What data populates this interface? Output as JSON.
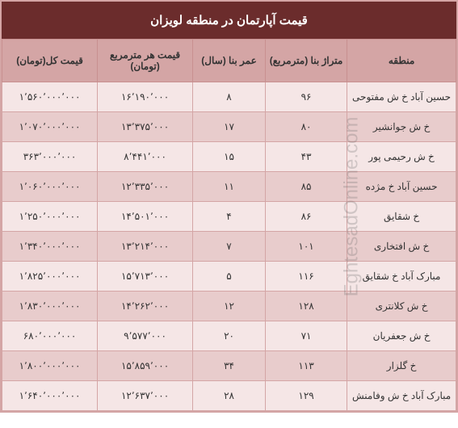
{
  "title": "قیمت آپارتمان در منطقه لویزان",
  "columns": {
    "region": "منطقه",
    "area": "متراژ بنا (مترمربع)",
    "age": "عمر بنا (سال)",
    "price_per_m": "قیمت هر مترمربع (تومان)",
    "total_price": "قیمت کل(تومان)"
  },
  "rows": [
    {
      "region": "حسین آباد خ ش مفتوحی",
      "area": "۹۶",
      "age": "۸",
      "ppm": "۱۶٬۱۹۰٬۰۰۰",
      "total": "۱٬۵۶۰٬۰۰۰٬۰۰۰"
    },
    {
      "region": "خ ش جوانشیر",
      "area": "۸۰",
      "age": "۱۷",
      "ppm": "۱۳٬۳۷۵٬۰۰۰",
      "total": "۱٬۰۷۰٬۰۰۰٬۰۰۰"
    },
    {
      "region": "خ ش رحیمی پور",
      "area": "۴۳",
      "age": "۱۵",
      "ppm": "۸٬۴۴۱٬۰۰۰",
      "total": "۳۶۳٬۰۰۰٬۰۰۰"
    },
    {
      "region": "حسین آباد خ مژده",
      "area": "۸۵",
      "age": "۱۱",
      "ppm": "۱۲٬۳۳۵٬۰۰۰",
      "total": "۱٬۰۶۰٬۰۰۰٬۰۰۰"
    },
    {
      "region": "خ شقایق",
      "area": "۸۶",
      "age": "۴",
      "ppm": "۱۴٬۵۰۱٬۰۰۰",
      "total": "۱٬۲۵۰٬۰۰۰٬۰۰۰"
    },
    {
      "region": "خ ش افتخاری",
      "area": "۱۰۱",
      "age": "۷",
      "ppm": "۱۳٬۲۱۴٬۰۰۰",
      "total": "۱٬۳۴۰٬۰۰۰٬۰۰۰"
    },
    {
      "region": "مبارک آباد خ شقایق",
      "area": "۱۱۶",
      "age": "۵",
      "ppm": "۱۵٬۷۱۳٬۰۰۰",
      "total": "۱٬۸۲۵٬۰۰۰٬۰۰۰"
    },
    {
      "region": "خ ش کلانتری",
      "area": "۱۲۸",
      "age": "۱۲",
      "ppm": "۱۴٬۲۶۲٬۰۰۰",
      "total": "۱٬۸۳۰٬۰۰۰٬۰۰۰"
    },
    {
      "region": "خ ش جعفریان",
      "area": "۷۱",
      "age": "۲۰",
      "ppm": "۹٬۵۷۷٬۰۰۰",
      "total": "۶۸۰٬۰۰۰٬۰۰۰"
    },
    {
      "region": "خ گلزار",
      "area": "۱۱۳",
      "age": "۳۴",
      "ppm": "۱۵٬۸۵۹٬۰۰۰",
      "total": "۱٬۸۰۰٬۰۰۰٬۰۰۰"
    },
    {
      "region": "مبارک آباد خ ش وفامنش",
      "area": "۱۲۹",
      "age": "۲۸",
      "ppm": "۱۲٬۶۳۷٬۰۰۰",
      "total": "۱٬۶۴۰٬۰۰۰٬۰۰۰"
    }
  ],
  "watermark": "EghtesadOnline.com",
  "styles": {
    "title_bg": "#6b2c2c",
    "title_fg": "#ffffff",
    "header_bg": "#d4a5a5",
    "row_odd_bg": "#f5e6e6",
    "row_even_bg": "#e8cccc",
    "border_color": "#d4a5a5",
    "text_color": "#333333",
    "title_fontsize": 15,
    "header_fontsize": 12,
    "cell_fontsize": 12
  }
}
